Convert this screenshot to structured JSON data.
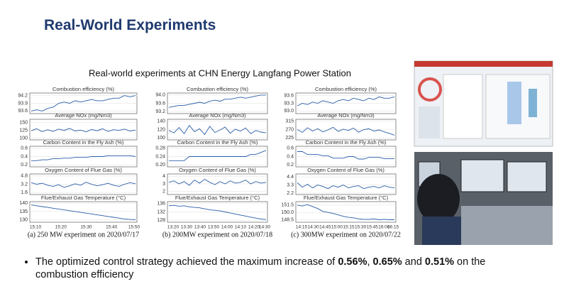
{
  "title": "Real-World Experiments",
  "subtitle": "Real-world experiments at CHN Energy Langfang Power Station",
  "captions": [
    "(a) 250 MW experiment on 2020/07/17",
    "(b) 200MW experiment on 2020/07/18",
    "(c) 300MW experiment on 2020/07/22"
  ],
  "bullet": [
    {
      "text": "The optimized control strategy achieved the maximum increase of "
    },
    {
      "text": "0.56%",
      "bold": true
    },
    {
      "text": ", "
    },
    {
      "text": "0.65%",
      "bold": true
    },
    {
      "text": " and "
    },
    {
      "text": "0.51%",
      "bold": true
    },
    {
      "text": " on the combustion efficiency"
    }
  ],
  "chart_data": [
    {
      "type": "line",
      "title": "Combustion efficiency (%)",
      "color": "#2a5ea8",
      "grid": true,
      "ylim": [
        93.5,
        94.3
      ],
      "yticks": [
        93.6,
        93.9,
        94.2
      ],
      "values": [
        93.6,
        93.65,
        93.6,
        93.7,
        93.75,
        93.9,
        93.95,
        93.9,
        94.0,
        93.95,
        94.0,
        94.05,
        94.0,
        94.0,
        94.05,
        94.1,
        94.1,
        94.2,
        94.15,
        94.2
      ]
    },
    {
      "type": "line",
      "title": "Average NOx (mg/Nm3)",
      "color": "#2a5ea8",
      "grid": true,
      "ylim": [
        95,
        160
      ],
      "yticks": [
        100,
        125,
        150
      ],
      "values": [
        124,
        130,
        121,
        127,
        122,
        129,
        125,
        131,
        123,
        126,
        120,
        128,
        124,
        130,
        122,
        127,
        125,
        129,
        123,
        126
      ]
    },
    {
      "type": "line",
      "title": "Carbon Content in the Fly Ash (%)",
      "color": "#2a5ea8",
      "grid": true,
      "ylim": [
        0.15,
        0.65
      ],
      "yticks": [
        0.2,
        0.4,
        0.6
      ],
      "values": [
        0.3,
        0.3,
        0.32,
        0.32,
        0.35,
        0.35,
        0.36,
        0.36,
        0.38,
        0.38,
        0.38,
        0.4,
        0.4,
        0.4,
        0.42,
        0.42,
        0.42,
        0.42,
        0.42,
        0.4
      ]
    },
    {
      "type": "line",
      "title": "Oxygen Content of Flue Gas (%)",
      "color": "#2a5ea8",
      "grid": true,
      "ylim": [
        1.2,
        5.2
      ],
      "yticks": [
        1.6,
        3.2,
        4.8
      ],
      "values": [
        3.5,
        3.2,
        3.4,
        3.0,
        2.8,
        3.1,
        2.6,
        2.9,
        3.3,
        3.0,
        3.6,
        3.2,
        2.9,
        3.1,
        3.4,
        3.0,
        2.8,
        3.2,
        3.5,
        3.3
      ]
    },
    {
      "type": "line",
      "title": "Flue/Exhaust Gas Temperature (°C)",
      "color": "#2a5ea8",
      "grid": true,
      "ylim": [
        128.5,
        141
      ],
      "yticks": [
        130,
        135,
        140
      ],
      "xticks": [
        "15:10",
        "15:20",
        "15:30",
        "15:40",
        "15:50"
      ],
      "values": [
        139,
        138.5,
        138,
        137.5,
        137,
        136.5,
        136,
        135.5,
        135,
        134.5,
        134,
        133.5,
        133,
        132.5,
        132,
        131.5,
        131,
        130.5,
        130.2,
        130
      ]
    },
    {
      "type": "line",
      "title": "Combustion efficiency (%)",
      "color": "#2a5ea8",
      "grid": true,
      "ylim": [
        93.1,
        94.1
      ],
      "yticks": [
        93.2,
        93.6,
        {
          "value": 94,
          "label": "94.0"
        }
      ],
      "values": [
        93.4,
        93.45,
        93.5,
        93.5,
        93.55,
        93.6,
        93.65,
        93.6,
        93.7,
        93.75,
        93.7,
        93.8,
        93.8,
        93.85,
        93.9,
        93.85,
        93.9,
        93.95,
        94.0,
        94.0
      ]
    },
    {
      "type": "line",
      "title": "Average NOx (mg/Nm3)",
      "color": "#2a5ea8",
      "grid": true,
      "ylim": [
        95,
        145
      ],
      "yticks": [
        100,
        120,
        140
      ],
      "values": [
        118,
        112,
        125,
        110,
        130,
        115,
        122,
        108,
        128,
        113,
        119,
        126,
        111,
        121,
        116,
        124,
        110,
        118,
        114,
        112
      ]
    },
    {
      "type": "line",
      "title": "Carbon Content in the Fly Ash (%)",
      "color": "#2a5ea8",
      "grid": true,
      "ylim": [
        0.19,
        0.29
      ],
      "yticks": [
        {
          "value": 0.2,
          "label": "0.20"
        },
        0.24,
        0.28
      ],
      "values": [
        0.22,
        0.22,
        0.22,
        0.22,
        0.24,
        0.24,
        0.24,
        0.24,
        0.24,
        0.24,
        0.24,
        0.24,
        0.24,
        0.24,
        0.24,
        0.24,
        0.25,
        0.25,
        0.26,
        0.27
      ]
    },
    {
      "type": "line",
      "title": "Oxygen Content of Flue Gas (%)",
      "color": "#2a5ea8",
      "grid": true,
      "ylim": [
        1.6,
        4.3
      ],
      "yticks": [
        2,
        3,
        4
      ],
      "values": [
        3.2,
        3.4,
        3.0,
        3.3,
        2.8,
        3.5,
        3.1,
        3.6,
        3.2,
        2.9,
        3.3,
        3.0,
        3.4,
        3.1,
        3.2,
        3.5,
        3.0,
        3.3,
        3.1,
        3.2
      ]
    },
    {
      "type": "line",
      "title": "Flue/Exhaust Gas Temperature (°C)",
      "color": "#2a5ea8",
      "grid": true,
      "ylim": [
        127,
        137
      ],
      "yticks": [
        128,
        132,
        136
      ],
      "xticks": [
        "13:20",
        "13:30",
        "13:40",
        "13:50",
        "14:00",
        "14:10",
        "14:20",
        "14:30"
      ],
      "values": [
        135,
        135.2,
        134.8,
        135,
        134.5,
        134.2,
        134,
        133.5,
        133,
        132.8,
        132.5,
        132,
        131.5,
        131,
        130.5,
        130,
        129.5,
        129,
        128.5,
        128.3
      ]
    },
    {
      "type": "line",
      "title": "Combustion efficiency (%)",
      "color": "#2a5ea8",
      "grid": true,
      "ylim": [
        92.9,
        93.7
      ],
      "yticks": [
        {
          "value": 93,
          "label": "93.0"
        },
        93.3,
        93.6
      ],
      "values": [
        93.2,
        93.3,
        93.25,
        93.35,
        93.3,
        93.4,
        93.35,
        93.3,
        93.4,
        93.45,
        93.4,
        93.5,
        93.45,
        93.4,
        93.5,
        93.45,
        93.55,
        93.5,
        93.5,
        93.55
      ]
    },
    {
      "type": "line",
      "title": "Average NOx (mg/Nm3)",
      "color": "#2a5ea8",
      "grid": true,
      "ylim": [
        215,
        325
      ],
      "yticks": [
        225,
        270,
        315
      ],
      "values": [
        270,
        255,
        280,
        262,
        275,
        258,
        268,
        282,
        260,
        272,
        265,
        278,
        256,
        270,
        274,
        262,
        268,
        258,
        250,
        240
      ]
    },
    {
      "type": "line",
      "title": "Carbon Content in the Fly Ash (%)",
      "color": "#2a5ea8",
      "grid": true,
      "ylim": [
        0.15,
        0.65
      ],
      "yticks": [
        0.2,
        0.4,
        0.6
      ],
      "values": [
        0.52,
        0.52,
        0.45,
        0.45,
        0.45,
        0.42,
        0.42,
        0.36,
        0.36,
        0.36,
        0.4,
        0.4,
        0.34,
        0.34,
        0.38,
        0.38,
        0.38,
        0.35,
        0.35,
        0.35
      ]
    },
    {
      "type": "line",
      "title": "Oxygen Content of Flue Gas (%)",
      "color": "#2a5ea8",
      "grid": true,
      "ylim": [
        2.0,
        4.8
      ],
      "yticks": [
        2.2,
        3.3,
        4.4
      ],
      "values": [
        3.6,
        3.0,
        3.4,
        2.9,
        3.3,
        3.1,
        2.8,
        3.2,
        3.0,
        3.3,
        2.9,
        3.1,
        3.2,
        2.8,
        3.0,
        3.1,
        2.9,
        3.2,
        3.0,
        2.9
      ]
    },
    {
      "type": "line",
      "title": "Flue/Exhaust Gas Temperature (°C)",
      "color": "#2a5ea8",
      "grid": true,
      "ylim": [
        148,
        152.2
      ],
      "yticks": [
        148.5,
        {
          "value": 150,
          "label": "150.0"
        },
        151.5
      ],
      "xticks": [
        "14:15",
        "14:30",
        "14:45",
        "15:00",
        "15:15",
        "15:30",
        "15:45",
        "16:00",
        "16:15"
      ],
      "values": [
        151.5,
        151.3,
        151.6,
        151.2,
        150.8,
        150.2,
        150.0,
        149.8,
        149.5,
        149.2,
        149.0,
        148.9,
        148.7,
        148.6,
        148.6,
        148.7,
        148.5,
        148.6,
        148.5,
        148.5
      ]
    }
  ]
}
